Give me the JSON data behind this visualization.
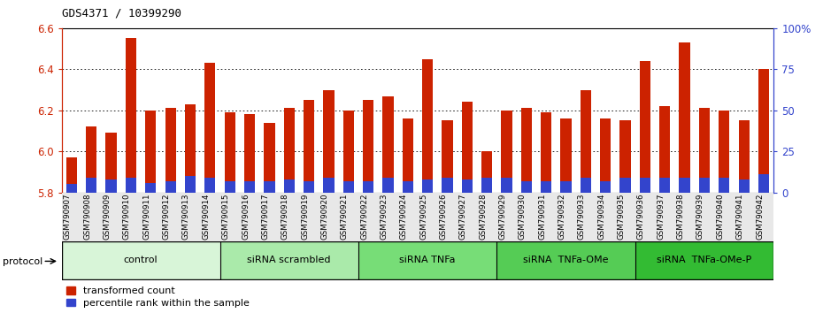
{
  "title": "GDS4371 / 10399290",
  "samples": [
    "GSM790907",
    "GSM790908",
    "GSM790909",
    "GSM790910",
    "GSM790911",
    "GSM790912",
    "GSM790913",
    "GSM790914",
    "GSM790915",
    "GSM790916",
    "GSM790917",
    "GSM790918",
    "GSM790919",
    "GSM790920",
    "GSM790921",
    "GSM790922",
    "GSM790923",
    "GSM790924",
    "GSM790925",
    "GSM790926",
    "GSM790927",
    "GSM790928",
    "GSM790929",
    "GSM790930",
    "GSM790931",
    "GSM790932",
    "GSM790933",
    "GSM790934",
    "GSM790935",
    "GSM790936",
    "GSM790937",
    "GSM790938",
    "GSM790939",
    "GSM790940",
    "GSM790941",
    "GSM790942"
  ],
  "red_values": [
    5.97,
    6.12,
    6.09,
    6.55,
    6.2,
    6.21,
    6.23,
    6.43,
    6.19,
    6.18,
    6.14,
    6.21,
    6.25,
    6.3,
    6.2,
    6.25,
    6.27,
    6.16,
    6.45,
    6.15,
    6.24,
    6.0,
    6.2,
    6.21,
    6.19,
    6.16,
    6.3,
    6.16,
    6.15,
    6.44,
    6.22,
    6.53,
    6.21,
    6.2,
    6.15,
    6.4
  ],
  "blue_percentile": [
    5,
    9,
    8,
    9,
    6,
    7,
    10,
    9,
    7,
    7,
    7,
    8,
    7,
    9,
    7,
    7,
    9,
    7,
    8,
    9,
    8,
    9,
    9,
    7,
    7,
    7,
    9,
    7,
    9,
    9,
    9,
    9,
    9,
    9,
    8,
    11
  ],
  "ylim_left": [
    5.8,
    6.6
  ],
  "ylim_right": [
    0,
    100
  ],
  "yticks_left": [
    5.8,
    6.0,
    6.2,
    6.4,
    6.6
  ],
  "yticks_right": [
    0,
    25,
    50,
    75,
    100
  ],
  "ytick_labels_right": [
    "0",
    "25",
    "50",
    "75",
    "100%"
  ],
  "bar_color_red": "#cc2200",
  "bar_color_blue": "#3344cc",
  "groups": [
    {
      "label": "control",
      "start": 0,
      "end": 8,
      "color": "#d8f5d8"
    },
    {
      "label": "siRNA scrambled",
      "start": 8,
      "end": 15,
      "color": "#aaeaaa"
    },
    {
      "label": "siRNA TNFa",
      "start": 15,
      "end": 22,
      "color": "#77dd77"
    },
    {
      "label": "siRNA  TNFa-OMe",
      "start": 22,
      "end": 29,
      "color": "#55cc55"
    },
    {
      "label": "siRNA  TNFa-OMe-P",
      "start": 29,
      "end": 36,
      "color": "#33bb33"
    }
  ],
  "legend_red_label": "transformed count",
  "legend_blue_label": "percentile rank within the sample",
  "protocol_label": "protocol",
  "bar_width": 0.55
}
